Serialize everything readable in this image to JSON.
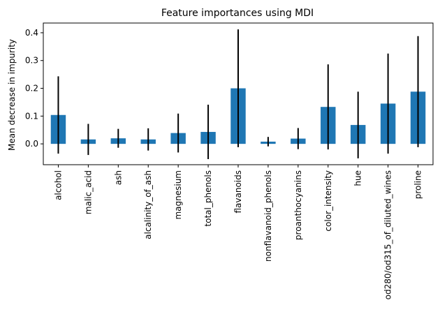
{
  "chart_data": {
    "type": "bar",
    "title": "Feature importances using MDI",
    "xlabel": "",
    "ylabel": "Mean decrease in impurity",
    "categories": [
      "alcohol",
      "malic_acid",
      "ash",
      "alcalinity_of_ash",
      "magnesium",
      "total_phenols",
      "flavanoids",
      "nonflavanoid_phenols",
      "proanthocyanins",
      "color_intensity",
      "hue",
      "od280/od315_of_diluted_wines",
      "proline"
    ],
    "values": [
      0.104,
      0.016,
      0.02,
      0.016,
      0.039,
      0.043,
      0.2,
      0.008,
      0.019,
      0.133,
      0.068,
      0.145,
      0.188
    ],
    "errors": [
      0.139,
      0.056,
      0.034,
      0.04,
      0.07,
      0.098,
      0.212,
      0.017,
      0.038,
      0.153,
      0.12,
      0.18,
      0.2
    ],
    "ylim": [
      -0.075,
      0.435
    ],
    "yticks": [
      0.0,
      0.1,
      0.2,
      0.3,
      0.4
    ],
    "ytick_labels": [
      "0.0",
      "0.1",
      "0.2",
      "0.3",
      "0.4"
    ],
    "grid": false,
    "legend": "none",
    "colors": {
      "bar": "#1f77b4",
      "error": "#000000",
      "axis": "#000000"
    }
  }
}
